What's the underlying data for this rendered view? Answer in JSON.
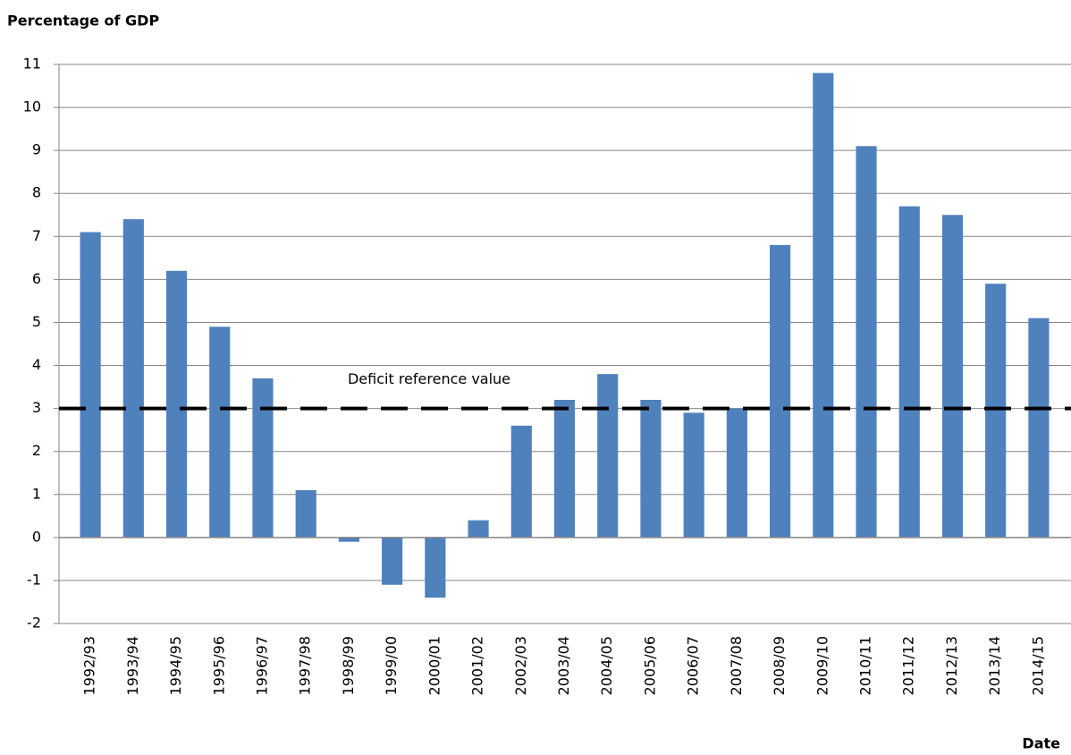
{
  "chart_data": {
    "type": "bar",
    "title": "Percentage of GDP",
    "x_label": "Date",
    "categories": [
      "1992/93",
      "1993/94",
      "1994/95",
      "1995/96",
      "1996/97",
      "1997/98",
      "1998/99",
      "1999/00",
      "2000/01",
      "2001/02",
      "2002/03",
      "2003/04",
      "2004/05",
      "2005/06",
      "2006/07",
      "2007/08",
      "2008/09",
      "2009/10",
      "2010/11",
      "2011/12",
      "2012/13",
      "2013/14",
      "2014/15"
    ],
    "values": [
      7.1,
      7.4,
      6.2,
      4.9,
      3.7,
      1.1,
      -0.1,
      -1.1,
      -1.4,
      0.4,
      2.6,
      3.2,
      3.8,
      3.2,
      2.9,
      3.0,
      6.8,
      10.8,
      9.1,
      7.7,
      7.5,
      5.9,
      5.1
    ],
    "color": "#4f81bd",
    "ylim": [
      -2,
      11
    ],
    "yticks": [
      -2,
      -1,
      0,
      1,
      2,
      3,
      4,
      5,
      6,
      7,
      8,
      9,
      10,
      11
    ],
    "grid": true,
    "reference_line": {
      "value": 3,
      "label": "Deficit reference value"
    }
  }
}
